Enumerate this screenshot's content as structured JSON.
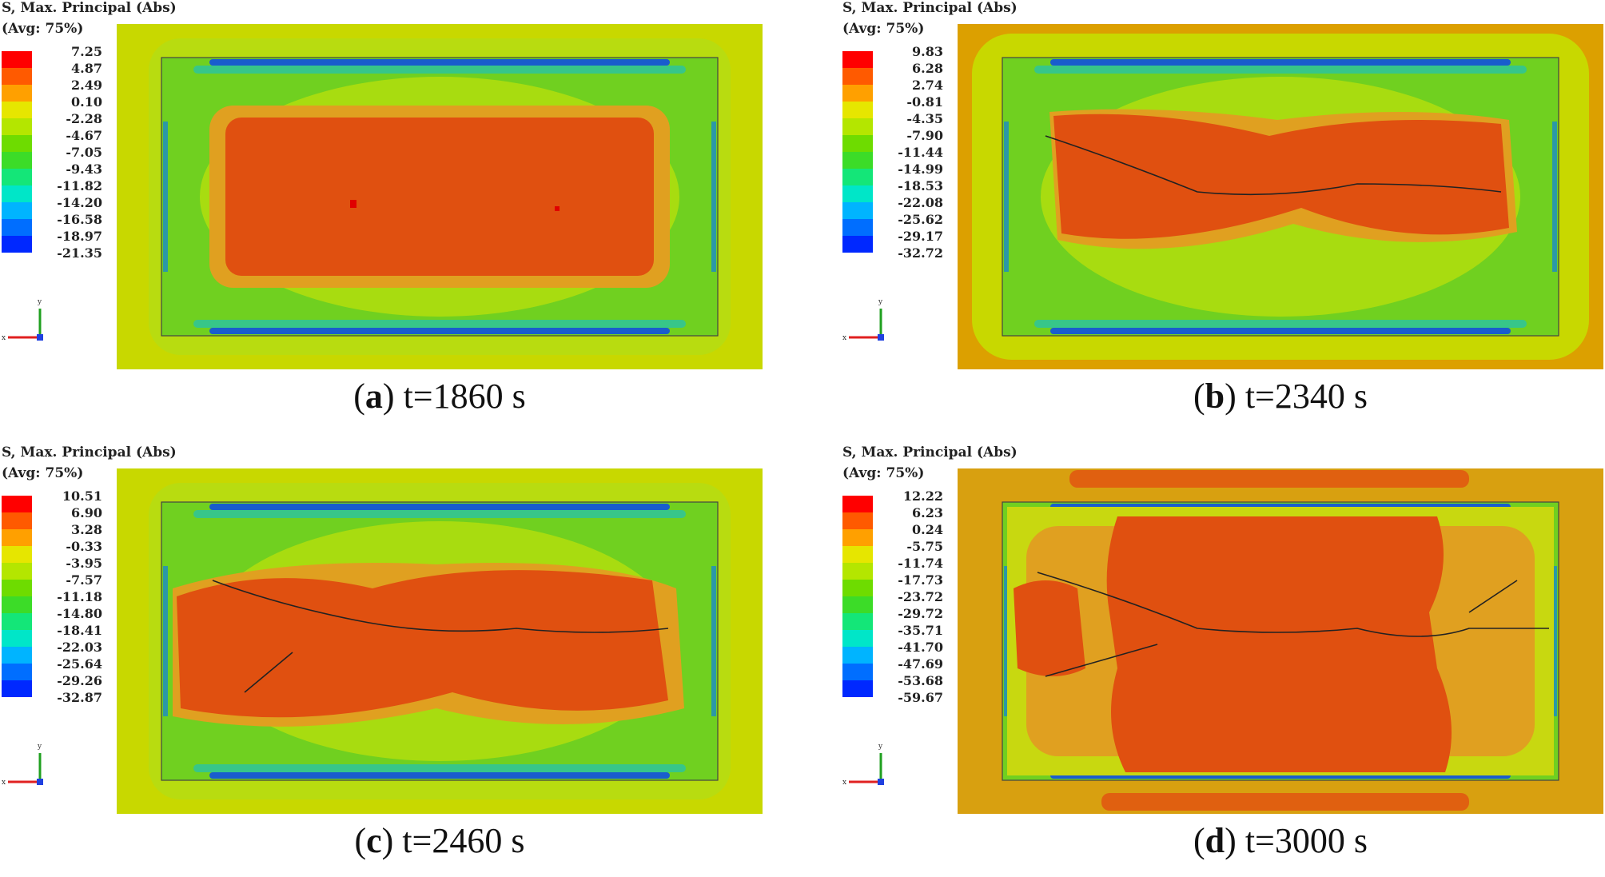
{
  "panels": [
    {
      "id": "a",
      "legend_title": "S, Max. Principal (Abs)",
      "legend_avg": "(Avg: 75%)",
      "ticks": [
        "7.25",
        "4.87",
        "2.49",
        "0.10",
        "-2.28",
        "-4.67",
        "-7.05",
        "-9.43",
        "-11.82",
        "-14.20",
        "-16.58",
        "-18.97",
        "-21.35"
      ],
      "caption_letter": "a",
      "caption_text": "t=1860 s",
      "border_color": "#c8d800",
      "crack": "none"
    },
    {
      "id": "b",
      "legend_title": "S, Max. Principal (Abs)",
      "legend_avg": "(Avg: 75%)",
      "ticks": [
        "9.83",
        "6.28",
        "2.74",
        "-0.81",
        "-4.35",
        "-7.90",
        "-11.44",
        "-14.99",
        "-18.53",
        "-22.08",
        "-25.62",
        "-29.17",
        "-32.72"
      ],
      "caption_letter": "b",
      "caption_text": "t=2340 s",
      "border_color": "#dca000",
      "crack": "small"
    },
    {
      "id": "c",
      "legend_title": "S, Max. Principal (Abs)",
      "legend_avg": "(Avg: 75%)",
      "ticks": [
        "10.51",
        "6.90",
        "3.28",
        "-0.33",
        "-3.95",
        "-7.57",
        "-11.18",
        "-14.80",
        "-18.41",
        "-22.03",
        "-25.64",
        "-29.26",
        "-32.87"
      ],
      "caption_letter": "c",
      "caption_text": "t=2460 s",
      "border_color": "#c8d800",
      "crack": "medium"
    },
    {
      "id": "d",
      "legend_title": "S, Max. Principal (Abs)",
      "legend_avg": "(Avg: 75%)",
      "ticks": [
        "12.22",
        "6.23",
        "0.24",
        "-5.75",
        "-11.74",
        "-17.73",
        "-23.72",
        "-29.72",
        "-35.71",
        "-41.70",
        "-47.69",
        "-53.68",
        "-59.67"
      ],
      "caption_letter": "d",
      "caption_text": "t=3000 s",
      "border_color": "#dca000",
      "crack": "large"
    }
  ],
  "colors": {
    "legend": [
      "#ff0000",
      "#ff5a00",
      "#ffa000",
      "#e6e600",
      "#b4e600",
      "#6edc00",
      "#3cdc28",
      "#14e678",
      "#00e6c8",
      "#00b4ff",
      "#006eff",
      "#0028ff",
      "#0000dc"
    ],
    "red_zone": "#e05010",
    "orange_zone": "#e0a020",
    "yellow_green": "#c8d800",
    "green": "#70d020",
    "light_green": "#a8dc10",
    "blue_edge": "#1050e0",
    "crack_line": "#222222"
  },
  "axis_labels": {
    "x": "x",
    "y": "y"
  }
}
